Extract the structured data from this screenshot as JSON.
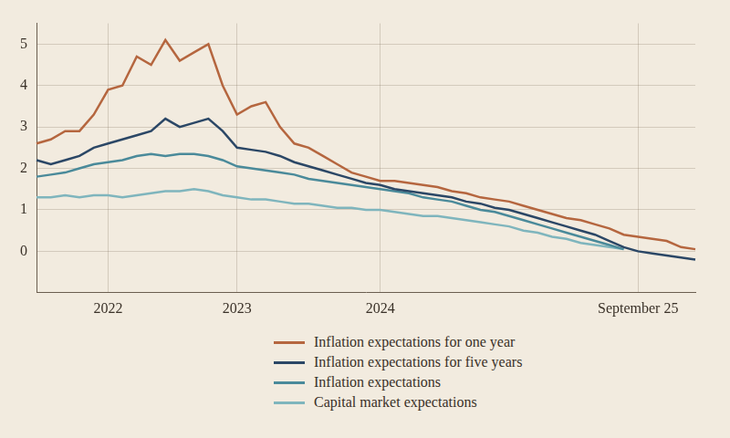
{
  "chart_data": {
    "type": "line",
    "categories": [
      null,
      null,
      null,
      null,
      null,
      "2022",
      null,
      null,
      null,
      null,
      null,
      null,
      null,
      null,
      "2023",
      null,
      null,
      null,
      null,
      null,
      null,
      null,
      null,
      null,
      "2024",
      null,
      null,
      null,
      null,
      null,
      null,
      null,
      null,
      null,
      null,
      null,
      null,
      null,
      null,
      null,
      null,
      null,
      "September 25",
      null,
      null,
      null,
      null
    ],
    "series": [
      {
        "name": "Inflation expectations for one year",
        "color": "#b5663f",
        "values": [
          2.6,
          2.7,
          2.9,
          2.9,
          3.3,
          3.9,
          4.0,
          4.7,
          4.5,
          5.1,
          4.6,
          4.8,
          5.0,
          4.0,
          3.3,
          3.5,
          3.6,
          3.0,
          2.6,
          2.5,
          2.3,
          2.1,
          1.9,
          1.8,
          1.7,
          1.7,
          1.65,
          1.6,
          1.55,
          1.45,
          1.4,
          1.3,
          1.25,
          1.2,
          1.1,
          1.0,
          0.9,
          0.8,
          0.75,
          0.65,
          0.55,
          0.4,
          0.35,
          0.3,
          0.25,
          0.1,
          0.05
        ]
      },
      {
        "name": "Inflation expectations for five years",
        "color": "#2b4766",
        "values": [
          2.2,
          2.1,
          2.2,
          2.3,
          2.5,
          2.6,
          2.7,
          2.8,
          2.9,
          3.2,
          3.0,
          3.1,
          3.2,
          2.9,
          2.5,
          2.45,
          2.4,
          2.3,
          2.15,
          2.05,
          1.95,
          1.85,
          1.75,
          1.65,
          1.6,
          1.5,
          1.45,
          1.4,
          1.35,
          1.3,
          1.2,
          1.15,
          1.05,
          1.0,
          0.9,
          0.8,
          0.7,
          0.6,
          0.5,
          0.4,
          0.25,
          0.1,
          0.0,
          -0.05,
          -0.1,
          -0.15,
          -0.2
        ]
      },
      {
        "name": "Inflation expectations",
        "color": "#4a8a9a",
        "values": [
          1.8,
          1.85,
          1.9,
          2.0,
          2.1,
          2.15,
          2.2,
          2.3,
          2.35,
          2.3,
          2.35,
          2.35,
          2.3,
          2.2,
          2.05,
          2.0,
          1.95,
          1.9,
          1.85,
          1.75,
          1.7,
          1.65,
          1.6,
          1.55,
          1.5,
          1.45,
          1.4,
          1.3,
          1.25,
          1.2,
          1.1,
          1.0,
          0.95,
          0.85,
          0.75,
          0.65,
          0.55,
          0.45,
          0.35,
          0.25,
          0.15,
          0.05,
          null,
          null,
          null,
          null,
          null
        ]
      },
      {
        "name": "Capital market expectations",
        "color": "#7fb5bd",
        "values": [
          1.3,
          1.3,
          1.35,
          1.3,
          1.35,
          1.35,
          1.3,
          1.35,
          1.4,
          1.45,
          1.45,
          1.5,
          1.45,
          1.35,
          1.3,
          1.25,
          1.25,
          1.2,
          1.15,
          1.15,
          1.1,
          1.05,
          1.05,
          1.0,
          1.0,
          0.95,
          0.9,
          0.85,
          0.85,
          0.8,
          0.75,
          0.7,
          0.65,
          0.6,
          0.5,
          0.45,
          0.35,
          0.3,
          0.2,
          0.15,
          0.1,
          0.05,
          null,
          null,
          null,
          null,
          null
        ]
      }
    ],
    "ylim": [
      -1,
      5.5
    ],
    "yticks": [
      0,
      1,
      2,
      3,
      4,
      5
    ],
    "grid": true,
    "legend": "bottom"
  }
}
